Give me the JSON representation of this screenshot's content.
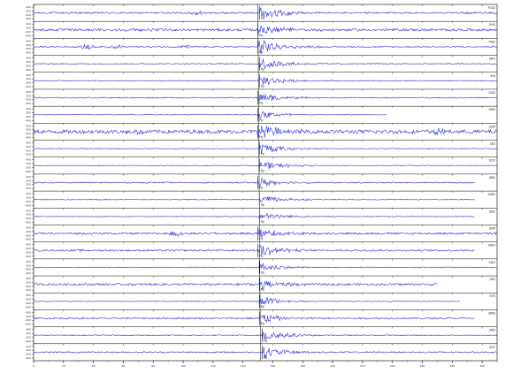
{
  "colors": {
    "trace": "#1f1fd6",
    "axis": "#000000",
    "pick": "#000000",
    "background": "#ffffff"
  },
  "chart_data": {
    "type": "line",
    "subtype": "seismic-record-section",
    "grid": false,
    "xlim": [
      0,
      310
    ],
    "x_ticks": [
      0,
      20,
      40,
      60,
      80,
      100,
      120,
      140,
      160,
      180,
      200,
      220,
      240,
      260,
      280,
      300
    ],
    "pick_label": "Pg",
    "pick_time": 150,
    "traces": [
      {
        "station": "RGD",
        "end": 310,
        "arrival": 151,
        "amp": 0.85,
        "noise": 0.1,
        "burst": [
          {
            "t": 110,
            "a": 0.25
          }
        ]
      },
      {
        "station": "SHS",
        "end": 310,
        "arrival": 150,
        "amp": 0.75,
        "noise": 0.14,
        "burst": []
      },
      {
        "station": "PGD",
        "end": 310,
        "arrival": 150,
        "amp": 0.95,
        "noise": 0.08,
        "burst": [
          {
            "t": 35,
            "a": 0.35
          },
          {
            "t": 55,
            "a": 0.3
          },
          {
            "t": 100,
            "a": 0.3
          }
        ]
      },
      {
        "station": "SRH",
        "end": 310,
        "arrival": 151,
        "amp": 0.8,
        "noise": 0.06,
        "burst": []
      },
      {
        "station": "SHI",
        "end": 310,
        "arrival": 151,
        "amp": 0.7,
        "noise": 0.05,
        "burst": []
      },
      {
        "station": "SGD",
        "end": 310,
        "arrival": 150,
        "amp": 0.6,
        "noise": 0.06,
        "burst": []
      },
      {
        "station": "SHD",
        "end": 236,
        "arrival": 150,
        "amp": 0.55,
        "noise": 0.04,
        "burst": []
      },
      {
        "station": "SSM",
        "end": 310,
        "arrival": 150,
        "amp": 0.9,
        "noise": 0.22,
        "burst": [
          {
            "t": 70,
            "a": 0.3
          },
          {
            "t": 270,
            "a": 0.3
          }
        ]
      },
      {
        "station": "CJD",
        "end": 310,
        "arrival": 151,
        "amp": 0.7,
        "noise": 0.05,
        "burst": []
      },
      {
        "station": "SCD",
        "end": 310,
        "arrival": 151,
        "amp": 0.6,
        "noise": 0.05,
        "burst": []
      },
      {
        "station": "JWD",
        "end": 295,
        "arrival": 150,
        "amp": 0.65,
        "noise": 0.07,
        "burst": []
      },
      {
        "station": "SWD",
        "end": 295,
        "arrival": 151,
        "amp": 0.6,
        "noise": 0.05,
        "burst": []
      },
      {
        "station": "SKD",
        "end": 295,
        "arrival": 151,
        "amp": 0.55,
        "noise": 0.05,
        "burst": []
      },
      {
        "station": "SHP",
        "end": 310,
        "arrival": 150,
        "amp": 0.7,
        "noise": 0.12,
        "burst": [
          {
            "t": 95,
            "a": 0.3
          }
        ]
      },
      {
        "station": "SWH",
        "end": 295,
        "arrival": 150,
        "amp": 0.8,
        "noise": 0.1,
        "burst": []
      },
      {
        "station": "SDH",
        "end": 310,
        "arrival": 151,
        "amp": 0.55,
        "noise": 0.05,
        "burst": []
      },
      {
        "station": "JGD",
        "end": 270,
        "arrival": 151,
        "amp": 0.7,
        "noise": 0.12,
        "burst": []
      },
      {
        "station": "SYS",
        "end": 285,
        "arrival": 151,
        "amp": 0.6,
        "noise": 0.05,
        "burst": []
      },
      {
        "station": "SMD",
        "end": 295,
        "arrival": 151,
        "amp": 0.6,
        "noise": 0.09,
        "burst": []
      },
      {
        "station": "SRD",
        "end": 310,
        "arrival": 153,
        "amp": 0.8,
        "noise": 0.05,
        "burst": []
      },
      {
        "station": "SHT",
        "end": 310,
        "arrival": 153,
        "amp": 0.75,
        "noise": 0.08,
        "burst": []
      }
    ]
  }
}
